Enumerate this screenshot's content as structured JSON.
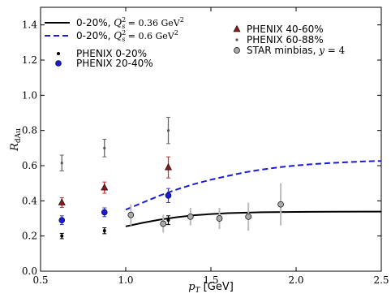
{
  "chart_data": {
    "type": "scatter",
    "xlabel": "p_T [GeV]",
    "xlabel_main": "p",
    "xlabel_sub": "T",
    "xlabel_unit": " [GeV]",
    "ylabel": "R_dAu",
    "ylabel_main": "R",
    "ylabel_sub": "dAu",
    "xlim": [
      0.5,
      2.5
    ],
    "ylim": [
      0.0,
      1.5
    ],
    "xticks": [
      0.5,
      1.0,
      1.5,
      2.0,
      2.5
    ],
    "xtick_labels": [
      "0.5",
      "1.0",
      "1.5",
      "2.0",
      "2.5"
    ],
    "yticks": [
      0.0,
      0.2,
      0.4,
      0.6,
      0.8,
      1.0,
      1.2,
      1.4
    ],
    "ytick_labels": [
      "0.0",
      "0.2",
      "0.4",
      "0.6",
      "0.8",
      "1.0",
      "1.2",
      "1.4"
    ],
    "grid": false,
    "legend_position": "top",
    "curves": [
      {
        "name": "0-20%, Q_s^2 = 0.36 GeV^2",
        "legend_prefix": "0-20%, ",
        "legend_q": "Q",
        "legend_s": "s",
        "legend_sq": "2",
        "legend_value": " = 0.36 GeV",
        "legend_unit_sq": "2",
        "style": "solid",
        "color": "#000000",
        "x": [
          1.0,
          1.1,
          1.2,
          1.3,
          1.4,
          1.5,
          1.6,
          1.8,
          2.0,
          2.2,
          2.4,
          2.5
        ],
        "y": [
          0.255,
          0.275,
          0.293,
          0.307,
          0.318,
          0.325,
          0.33,
          0.335,
          0.337,
          0.338,
          0.339,
          0.339
        ]
      },
      {
        "name": "0-20%, Q_s^2 = 0.6 GeV^2",
        "legend_prefix": "0-20%, ",
        "legend_q": "Q",
        "legend_s": "s",
        "legend_sq": "2",
        "legend_value": " = 0.6 GeV",
        "legend_unit_sq": "2",
        "style": "dashed",
        "color": "#1a1adb",
        "x": [
          1.0,
          1.1,
          1.2,
          1.3,
          1.4,
          1.5,
          1.6,
          1.7,
          1.8,
          1.9,
          2.0,
          2.1,
          2.2,
          2.3,
          2.4,
          2.5
        ],
        "y": [
          0.35,
          0.39,
          0.43,
          0.465,
          0.495,
          0.52,
          0.542,
          0.562,
          0.578,
          0.591,
          0.601,
          0.609,
          0.615,
          0.62,
          0.624,
          0.627
        ]
      }
    ],
    "series": [
      {
        "name": "PHENIX 0-20%",
        "marker": "dot",
        "color": "#000000",
        "err_color": "#000000",
        "points": [
          {
            "x": 0.625,
            "y": 0.2,
            "err": 0.015
          },
          {
            "x": 0.875,
            "y": 0.23,
            "err": 0.017
          },
          {
            "x": 1.25,
            "y": 0.29,
            "err": 0.025
          }
        ]
      },
      {
        "name": "PHENIX 20-40%",
        "marker": "circle",
        "color": "#1a1adb",
        "err_color": "#3b3bd1",
        "points": [
          {
            "x": 0.625,
            "y": 0.29,
            "err": 0.025
          },
          {
            "x": 0.875,
            "y": 0.335,
            "err": 0.025
          },
          {
            "x": 1.25,
            "y": 0.43,
            "err": 0.04
          }
        ]
      },
      {
        "name": "PHENIX 40-60%",
        "marker": "triangle",
        "color": "#8b1a1a",
        "err_color": "#d23030",
        "points": [
          {
            "x": 0.625,
            "y": 0.39,
            "err": 0.028
          },
          {
            "x": 0.875,
            "y": 0.475,
            "err": 0.032
          },
          {
            "x": 1.25,
            "y": 0.59,
            "err": 0.06
          }
        ]
      },
      {
        "name": "PHENIX 60-88%",
        "marker": "smalldot",
        "color": "#555555",
        "err_color": "#666666",
        "points": [
          {
            "x": 0.625,
            "y": 0.615,
            "err": 0.045
          },
          {
            "x": 0.875,
            "y": 0.7,
            "err": 0.05
          },
          {
            "x": 1.25,
            "y": 0.8,
            "err": 0.075
          }
        ]
      },
      {
        "name": "STAR minbias, y = 4",
        "legend_prefix": "STAR minbias, ",
        "legend_y": "y",
        "legend_rest": " = 4",
        "marker": "graycircle",
        "color": "#aaaaaa",
        "err_color": "#bbbbbb",
        "points": [
          {
            "x": 1.03,
            "y": 0.32,
            "err": 0.06
          },
          {
            "x": 1.22,
            "y": 0.27,
            "err": 0.05
          },
          {
            "x": 1.38,
            "y": 0.31,
            "err": 0.05
          },
          {
            "x": 1.55,
            "y": 0.3,
            "err": 0.06
          },
          {
            "x": 1.72,
            "y": 0.31,
            "err": 0.08
          },
          {
            "x": 1.91,
            "y": 0.38,
            "err": 0.12
          }
        ]
      }
    ]
  }
}
